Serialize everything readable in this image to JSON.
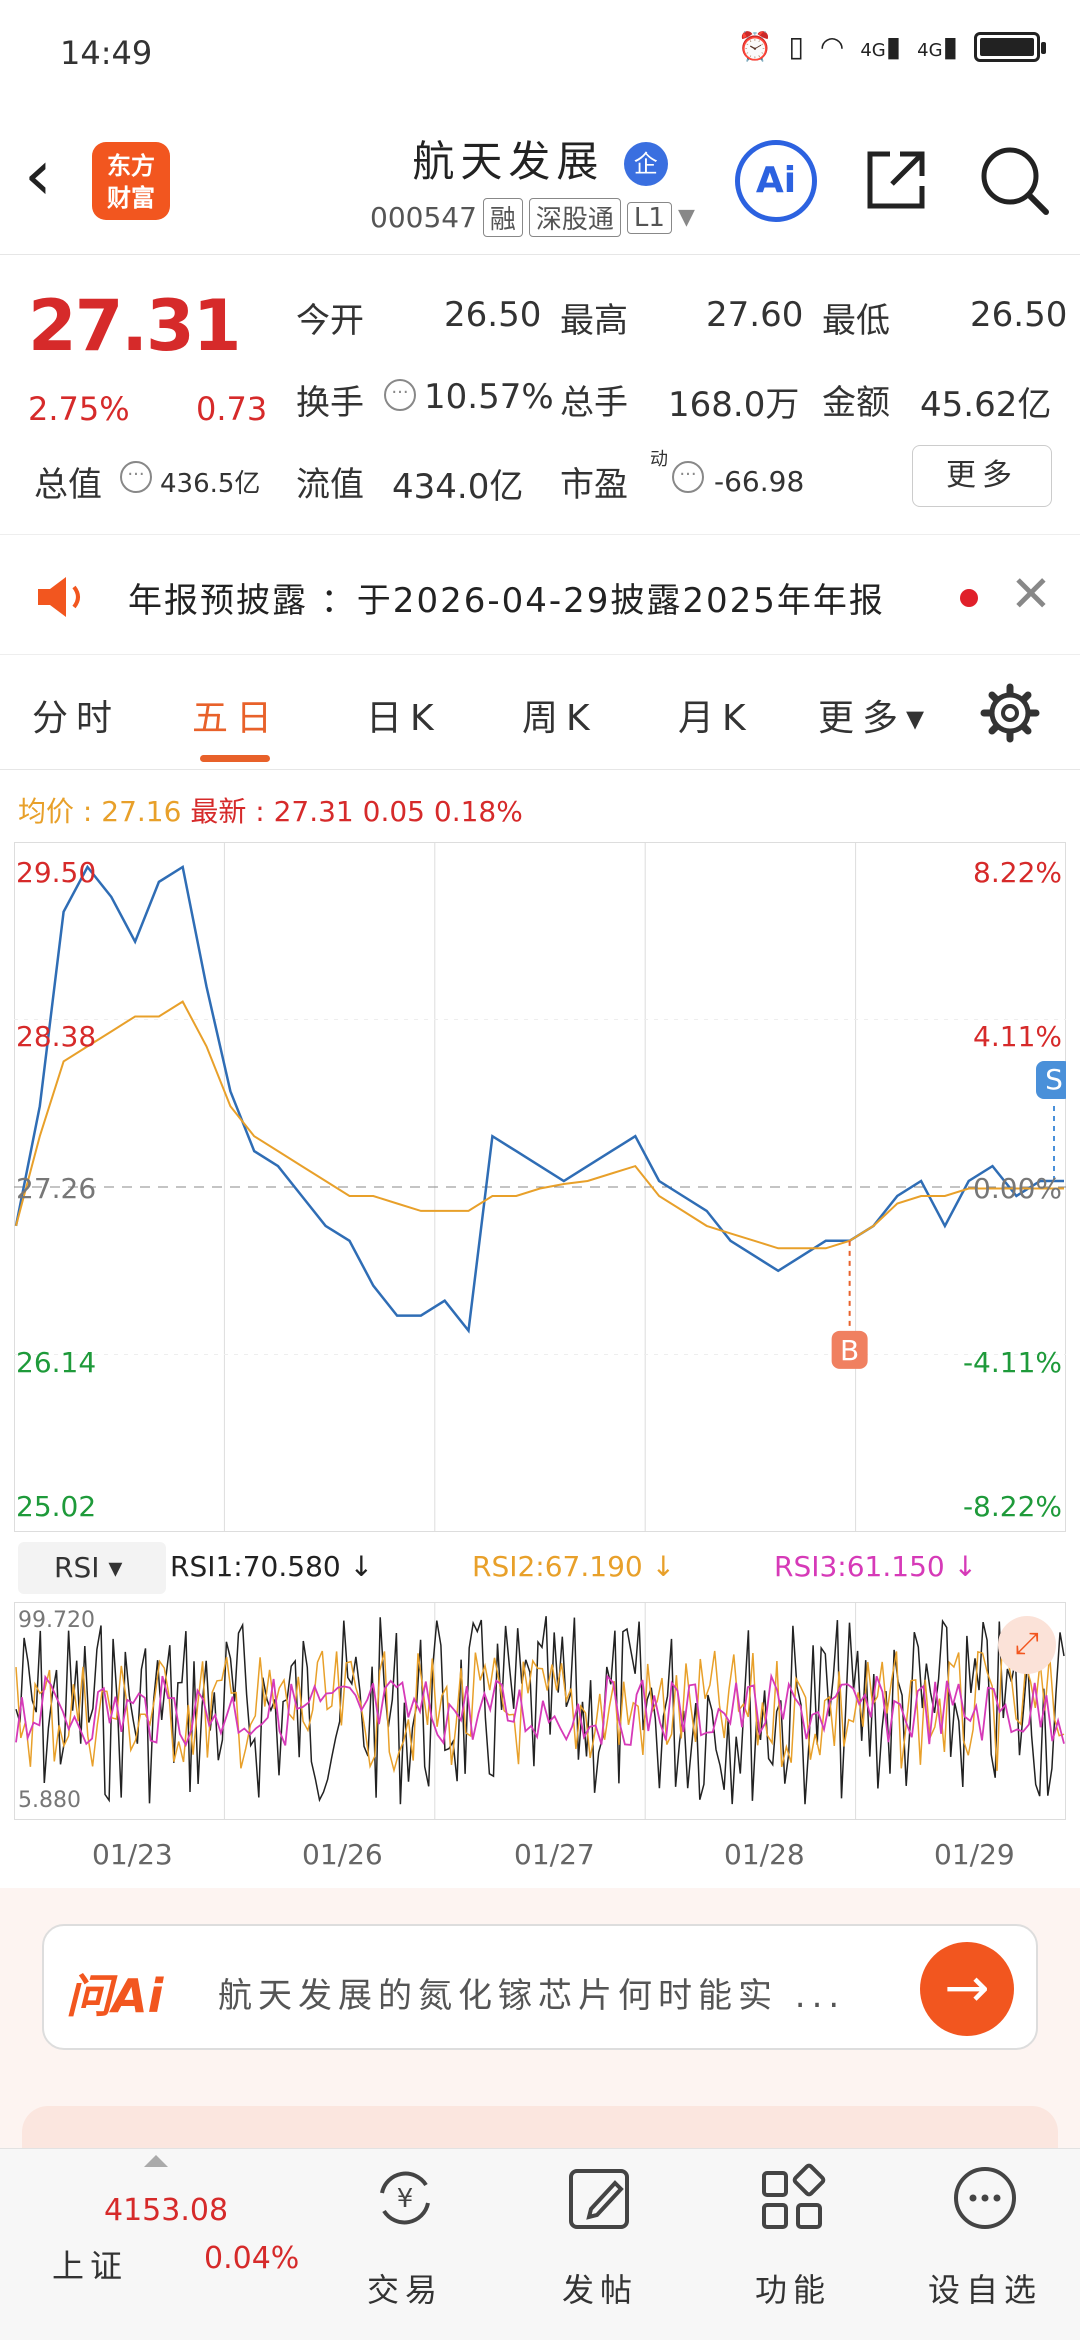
{
  "status_bar": {
    "time": "14:49",
    "net1": "4G",
    "net2": "4G"
  },
  "header": {
    "stock_name": "航天发展",
    "badge": "企",
    "code": "000547",
    "tags": [
      "融",
      "深股通",
      "L1"
    ],
    "logo_text_1": "东方",
    "logo_text_2": "财富",
    "ai_label": "Ai"
  },
  "quote": {
    "price": "27.31",
    "change_pct": "2.75%",
    "change": "0.73",
    "open_label": "今开",
    "open": "26.50",
    "high_label": "最高",
    "high": "27.60",
    "low_label": "最低",
    "low": "26.50",
    "turnover_label": "换手",
    "turnover": "10.57%",
    "volume_label": "总手",
    "volume": "168.0万",
    "amount_label": "金额",
    "amount": "45.62亿",
    "mcap_label": "总值",
    "mcap": "436.5亿",
    "float_label": "流值",
    "float": "434.0亿",
    "pe_label": "市盈",
    "pe_sup": "动",
    "pe": "-66.98",
    "more_label": "更多"
  },
  "notice": {
    "text": "年报预披露 ：于2026-04-29披露2025年年报"
  },
  "tabs": [
    {
      "label": "分时"
    },
    {
      "label": "五日"
    },
    {
      "label": "日K"
    },
    {
      "label": "周K"
    },
    {
      "label": "月K"
    },
    {
      "label": "更多▾"
    }
  ],
  "info": {
    "avg_label": "均价",
    "avg": "27.16",
    "latest_label": "最新",
    "latest": "27.31",
    "latest_chg": "0.05",
    "latest_pct": "0.18%"
  },
  "colors": {
    "price_line": "#2f6db5",
    "avg_line": "#e8a02a",
    "rsi1": "#222222",
    "rsi2": "#e8a02a",
    "rsi3": "#d63ab8",
    "up": "#d62a2a",
    "down": "#1e9a3a"
  },
  "chart_data": {
    "type": "line",
    "title": "",
    "y_left_ticks": [
      "29.50",
      "28.38",
      "27.26",
      "26.14",
      "25.02"
    ],
    "y_right_ticks": [
      "8.22%",
      "4.11%",
      "0.00%",
      "-4.11%",
      "-8.22%"
    ],
    "ylim": [
      25.02,
      29.5
    ],
    "prev_close": 27.26,
    "x_labels": [
      "01/23",
      "01/26",
      "01/27",
      "01/28",
      "01/29"
    ],
    "markers": [
      {
        "label": "S",
        "day": "01/29"
      },
      {
        "label": "B",
        "day": "01/28"
      }
    ],
    "series": [
      {
        "name": "",
        "role": "price",
        "values": [
          27.0,
          27.8,
          29.1,
          29.4,
          29.2,
          28.9,
          29.3,
          29.4,
          28.6,
          27.9,
          27.5,
          27.4,
          27.2,
          27.0,
          26.9,
          26.6,
          26.4,
          26.4,
          26.5,
          26.3,
          27.6,
          27.5,
          27.4,
          27.3,
          27.4,
          27.5,
          27.6,
          27.3,
          27.2,
          27.1,
          26.9,
          26.8,
          26.7,
          26.8,
          26.9,
          26.9,
          27.0,
          27.2,
          27.3,
          27.0,
          27.3,
          27.4,
          27.2,
          27.3,
          27.3
        ]
      },
      {
        "name": "",
        "role": "average",
        "values": [
          27.0,
          27.6,
          28.1,
          28.2,
          28.3,
          28.4,
          28.4,
          28.5,
          28.2,
          27.8,
          27.6,
          27.5,
          27.4,
          27.3,
          27.2,
          27.2,
          27.15,
          27.1,
          27.1,
          27.1,
          27.2,
          27.2,
          27.25,
          27.28,
          27.3,
          27.35,
          27.4,
          27.2,
          27.1,
          27.0,
          26.95,
          26.9,
          26.85,
          26.85,
          26.85,
          26.9,
          27.0,
          27.15,
          27.2,
          27.2,
          27.25,
          27.25,
          27.25,
          27.25,
          27.25
        ]
      }
    ]
  },
  "rsi": {
    "selector": "RSI",
    "rsi1": "RSI1:70.580 ↓",
    "rsi2": "RSI2:67.190 ↓",
    "rsi3": "RSI3:61.150 ↓",
    "top": "99.720",
    "bottom": "5.880"
  },
  "ask": {
    "brand": "问Ai",
    "question": "航天发展的氮化镓芯片何时能实 ..."
  },
  "bottom_nav": {
    "index_value": "4153.08",
    "index_name": "上证",
    "index_pct": "0.04%",
    "items": [
      {
        "label": "交易"
      },
      {
        "label": "发帖"
      },
      {
        "label": "功能"
      },
      {
        "label": "设自选"
      }
    ]
  }
}
